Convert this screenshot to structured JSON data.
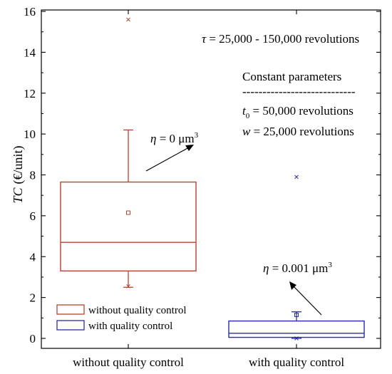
{
  "chart_data": {
    "type": "box",
    "ylabel": {
      "symbol": "TC",
      "unit": "(€/unit)"
    },
    "ylim": [
      0,
      16
    ],
    "yticks": [
      0,
      2,
      4,
      6,
      8,
      10,
      12,
      14,
      16
    ],
    "categories": [
      "without quality control",
      "with quality control"
    ],
    "grid": false,
    "legend_placement": "bottom-left",
    "series": [
      {
        "name": "without quality control",
        "color": "#b5452e",
        "stats": {
          "whisker_low": 2.5,
          "q1": 3.3,
          "median": 4.7,
          "q3": 7.65,
          "whisker_high": 10.2,
          "mean": 6.15
        },
        "outliers": [
          {
            "y": 15.6,
            "marker": "x"
          },
          {
            "y": 2.55,
            "marker": "x"
          }
        ],
        "annotation": {
          "symbol": "η",
          "eq": " = 0 μm",
          "sup": "3"
        }
      },
      {
        "name": "with quality control",
        "color": "#2c2ca8",
        "stats": {
          "whisker_low": 0.0,
          "q1": 0.05,
          "median": 0.25,
          "q3": 0.85,
          "whisker_high": 1.3,
          "mean": 1.15
        },
        "outliers": [
          {
            "y": 7.9,
            "marker": "x"
          },
          {
            "y": 0.0,
            "marker": "x"
          }
        ],
        "annotation": {
          "symbol": "η",
          "eq": " = 0.001 μm",
          "sup": "3"
        }
      }
    ],
    "annotations": {
      "tau": {
        "symbol": "τ",
        "text": " = 25,000 - 150,000 revolutions"
      },
      "constant_title": "Constant parameters",
      "separator": "----------------------------",
      "t0": {
        "symbol": "t",
        "sub": "0",
        "text": " = 50,000 revolutions"
      },
      "w": {
        "symbol": "w",
        "text": " = 25,000 revolutions"
      }
    }
  }
}
